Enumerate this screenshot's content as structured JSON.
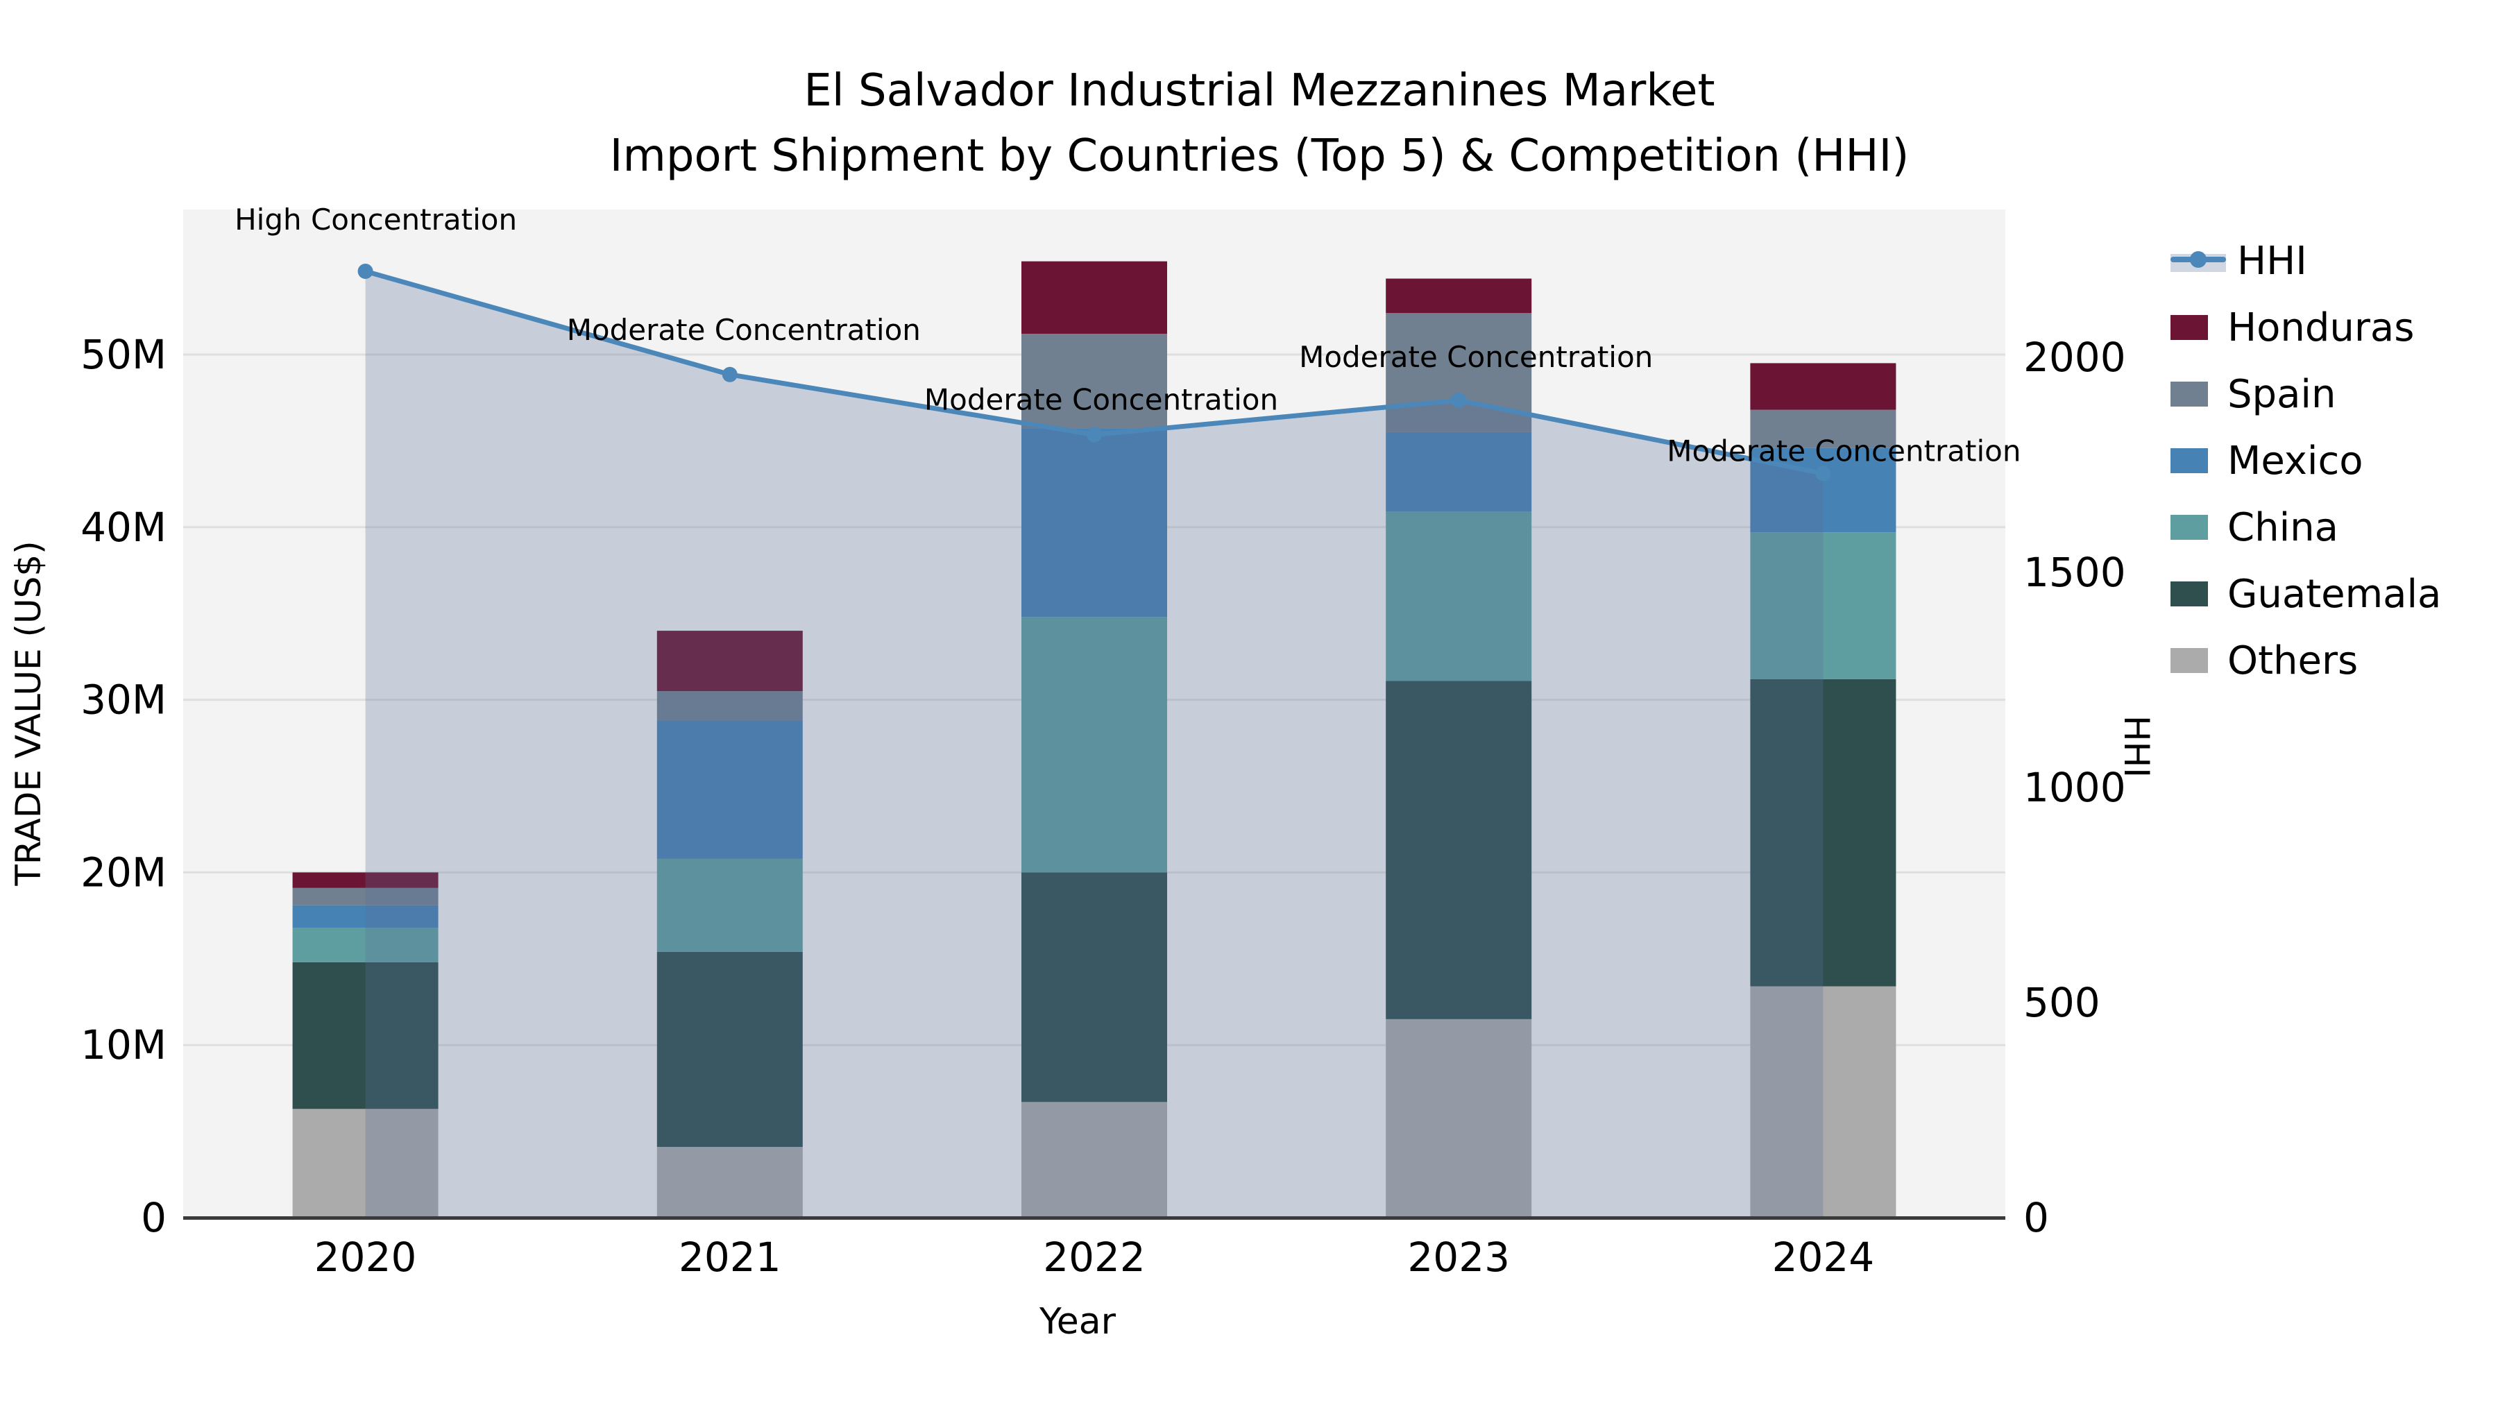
{
  "title": {
    "line1": "El Salvador Industrial Mezzanines Market",
    "line2": "Import Shipment by Countries (Top 5) & Competition (HHI)"
  },
  "axes": {
    "x_label": "Year",
    "y_left_label": "TRADE VALUE (US$)",
    "y_right_label": "HHI",
    "y_left_ticks": [
      "0",
      "10M",
      "20M",
      "30M",
      "40M",
      "50M"
    ],
    "y_right_ticks": [
      "0",
      "500",
      "1000",
      "1500",
      "2000"
    ]
  },
  "chart_data": {
    "type": "bar",
    "subtype": "stacked-bars-with-line",
    "categories": [
      "2020",
      "2021",
      "2022",
      "2023",
      "2024"
    ],
    "bar_value_unit": "million US$",
    "ylim_left": [
      0,
      58.4
    ],
    "ylim_right": [
      0,
      2343
    ],
    "grid": "on",
    "legend_position": "right",
    "series": [
      {
        "name": "Others",
        "color": "#ABABAB",
        "values": [
          6.3,
          4.1,
          6.7,
          11.5,
          13.4
        ]
      },
      {
        "name": "Guatemala",
        "color": "#2F4F4F",
        "values": [
          8.5,
          11.3,
          13.3,
          19.6,
          17.8
        ]
      },
      {
        "name": "China",
        "color": "#5F9EA0",
        "values": [
          2.0,
          5.4,
          14.8,
          9.8,
          8.5
        ]
      },
      {
        "name": "Mexico",
        "color": "#4682B4",
        "values": [
          1.3,
          8.0,
          10.9,
          4.6,
          4.9
        ]
      },
      {
        "name": "Spain",
        "color": "#708090",
        "values": [
          1.0,
          1.7,
          5.5,
          6.9,
          2.2
        ]
      },
      {
        "name": "Honduras",
        "color": "#6B1433",
        "values": [
          0.9,
          3.5,
          4.2,
          2.0,
          2.7
        ]
      }
    ],
    "bar_totals": [
      20.0,
      34.0,
      55.4,
      54.4,
      49.5
    ],
    "line_series": {
      "name": "HHI",
      "color": "#4C87B9",
      "area_color": "rgba(90,110,150,0.28)",
      "values": [
        2200,
        1960,
        1820,
        1900,
        1730
      ]
    },
    "annotations": [
      {
        "category": "2020",
        "label": "High Concentration"
      },
      {
        "category": "2021",
        "label": "Moderate Concentration"
      },
      {
        "category": "2022",
        "label": "Moderate Concentration"
      },
      {
        "category": "2023",
        "label": "Moderate Concentration"
      },
      {
        "category": "2024",
        "label": "Moderate Concentration"
      }
    ],
    "legend_order": [
      "HHI",
      "Honduras",
      "Spain",
      "Mexico",
      "China",
      "Guatemala",
      "Others"
    ]
  }
}
